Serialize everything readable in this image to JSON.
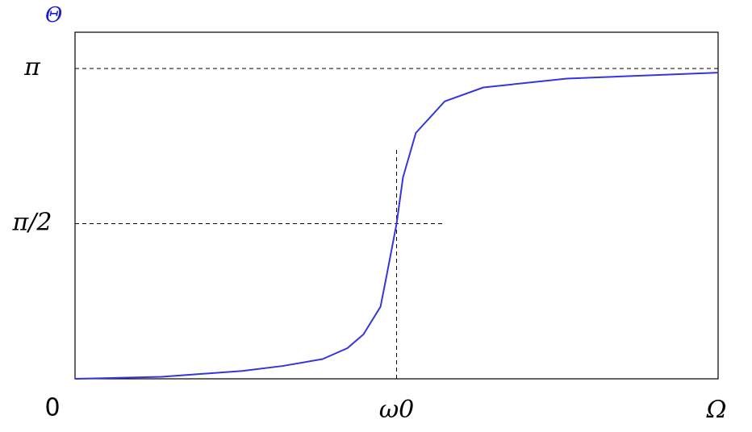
{
  "chart_data": {
    "type": "line",
    "ylabel": "Θ",
    "xlim": [
      0,
      2
    ],
    "ylim": [
      0,
      3.509
    ],
    "xticks": [
      {
        "value": 1,
        "label": "ω0"
      },
      {
        "value": 2,
        "label": "Ω"
      }
    ],
    "yticks": [
      0,
      {
        "value": 1.5708,
        "label": "π/2"
      },
      {
        "value": 3.1416,
        "label": "π"
      }
    ],
    "x": [
      0,
      0.27,
      0.52,
      0.646,
      0.77,
      0.847,
      0.897,
      0.95,
      0.97,
      1,
      1.02,
      1.06,
      1.15,
      1.27,
      1.53,
      2
    ],
    "series": [
      {
        "color": "#3535e0",
        "values": [
          0,
          0.02,
          0.08,
          0.13,
          0.2,
          0.31,
          0.45,
          0.73,
          1.06,
          1.57,
          2.04,
          2.49,
          2.81,
          2.95,
          3.04,
          3.1
        ]
      }
    ],
    "reference_lines": [
      {
        "axis": "y",
        "tick": 2,
        "to": 2
      },
      {
        "axis": "y",
        "tick": 1,
        "to": 1.15
      },
      {
        "axis": "x",
        "tick": 0,
        "to": 2.33
      }
    ]
  }
}
